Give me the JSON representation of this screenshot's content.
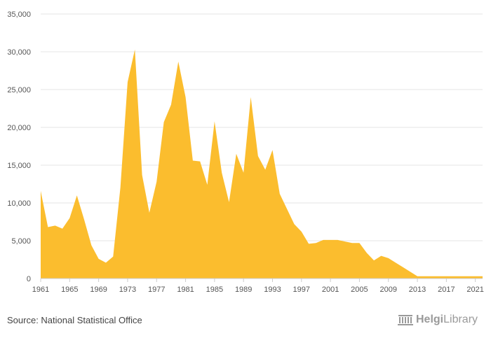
{
  "chart_data": {
    "type": "area",
    "title": "",
    "xlabel": "",
    "ylabel": "",
    "ylim": [
      0,
      35000
    ],
    "yticks": [
      0,
      5000,
      10000,
      15000,
      20000,
      25000,
      30000,
      35000
    ],
    "ytick_labels": [
      "0",
      "5,000",
      "10,000",
      "15,000",
      "20,000",
      "25,000",
      "30,000",
      "35,000"
    ],
    "xticks": [
      1961,
      1965,
      1969,
      1973,
      1977,
      1981,
      1985,
      1989,
      1993,
      1997,
      2001,
      2005,
      2009,
      2013,
      2017,
      2021
    ],
    "xlim": [
      1961,
      2022
    ],
    "grid": true,
    "legend": "none",
    "fill_color": "#FBBD2E",
    "x": [
      1961,
      1962,
      1963,
      1964,
      1965,
      1966,
      1967,
      1968,
      1969,
      1970,
      1971,
      1972,
      1973,
      1974,
      1975,
      1976,
      1977,
      1978,
      1979,
      1980,
      1981,
      1982,
      1983,
      1984,
      1985,
      1986,
      1987,
      1988,
      1989,
      1990,
      1991,
      1992,
      1993,
      1994,
      1995,
      1996,
      1997,
      1998,
      1999,
      2000,
      2001,
      2002,
      2003,
      2004,
      2005,
      2006,
      2007,
      2008,
      2009,
      2010,
      2011,
      2012,
      2013,
      2014,
      2015,
      2016,
      2017,
      2018,
      2019,
      2020,
      2021,
      2022
    ],
    "values": [
      11600,
      6800,
      7000,
      6600,
      8000,
      11000,
      7800,
      4400,
      2600,
      2100,
      2900,
      12000,
      26000,
      30300,
      13700,
      8700,
      12800,
      20700,
      23000,
      28700,
      24000,
      15600,
      15500,
      12400,
      20800,
      14000,
      10100,
      16500,
      14000,
      24000,
      16200,
      14400,
      17000,
      11200,
      9200,
      7200,
      6200,
      4600,
      4700,
      5100,
      5100,
      5100,
      4900,
      4700,
      4700,
      3400,
      2400,
      3000,
      2700,
      2100,
      1500,
      900,
      300,
      300,
      300,
      300,
      300,
      300,
      300,
      300,
      300,
      300
    ]
  },
  "footer": {
    "source": "Source: National Statistical Office",
    "logo": "HelgiLibrary",
    "logo_bold": "Helgi",
    "logo_light": "Library",
    "logo_icon": "library-columns-icon"
  }
}
